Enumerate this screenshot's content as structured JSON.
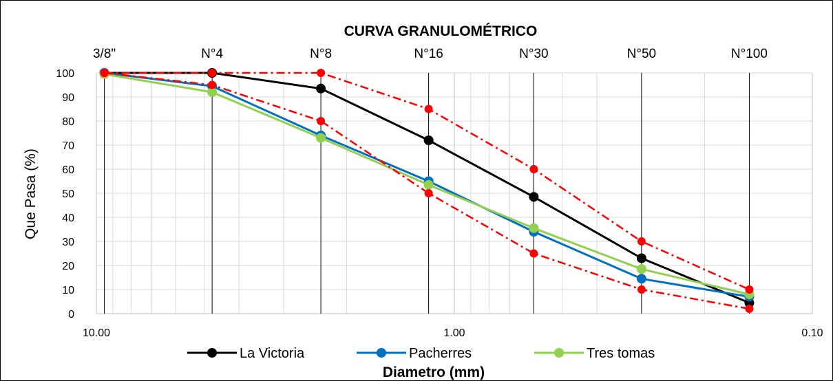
{
  "chart_data": {
    "type": "line",
    "title": "CURVA GRANULOMÉTRICO",
    "xlabel": "Diametro (mm)",
    "ylabel": "Que Pasa (%)",
    "x_scale": "log",
    "x_reversed": true,
    "xlim": [
      10.0,
      0.1
    ],
    "ylim": [
      0,
      100
    ],
    "y_ticks": [
      "0",
      "10",
      "20",
      "30",
      "40",
      "50",
      "60",
      "70",
      "80",
      "90",
      "100"
    ],
    "x_ticks": [
      {
        "value": 10.0,
        "label": "10.00"
      },
      {
        "value": 1.0,
        "label": "1.00"
      },
      {
        "value": 0.1,
        "label": "0.10"
      }
    ],
    "sieves": [
      {
        "label": "3/8\"",
        "x": 9.5
      },
      {
        "label": "N°4",
        "x": 4.75
      },
      {
        "label": "N°8",
        "x": 2.36
      },
      {
        "label": "N°16",
        "x": 1.18
      },
      {
        "label": "N°30",
        "x": 0.6
      },
      {
        "label": "N°50",
        "x": 0.3
      },
      {
        "label": "N°100",
        "x": 0.15
      }
    ],
    "x": [
      9.5,
      4.75,
      2.36,
      1.18,
      0.6,
      0.3,
      0.15
    ],
    "series": [
      {
        "name": "La Victoria",
        "color": "#000000",
        "values": [
          100,
          100,
          93.5,
          72,
          48.5,
          23,
          4.5
        ],
        "in_legend": true,
        "style": "solid"
      },
      {
        "name": "Pacherres",
        "color": "#0070C0",
        "values": [
          100,
          94.5,
          74,
          55,
          34,
          14.5,
          7
        ],
        "in_legend": true,
        "style": "solid"
      },
      {
        "name": "Tres tomas",
        "color": "#92D050",
        "values": [
          99.5,
          92,
          73,
          53.5,
          35.5,
          18.5,
          8
        ],
        "in_legend": true,
        "style": "solid"
      },
      {
        "color": "#FF0000",
        "values": [
          100,
          100,
          100,
          85,
          60,
          30,
          10
        ],
        "in_legend": false,
        "style": "dash-dot"
      },
      {
        "color": "#FF0000",
        "values": [
          100,
          95,
          80,
          50,
          25,
          10,
          2
        ],
        "in_legend": false,
        "style": "dash-dot"
      }
    ],
    "grid": true,
    "legend_position": "bottom"
  }
}
